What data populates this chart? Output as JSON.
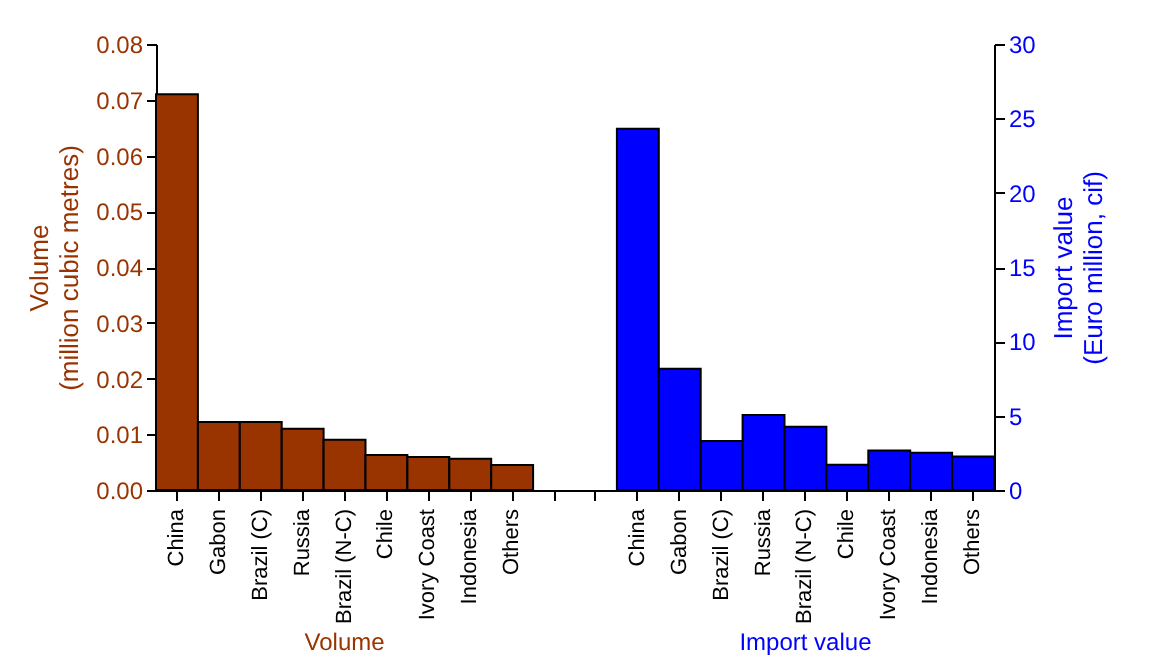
{
  "chart_data": {
    "type": "bar",
    "ylabel": "Volume\n(million cubic metres)",
    "y2label": "Import value\n(Euro million, cif)",
    "categories": [
      "China",
      "Gabon",
      "Brazil (C)",
      "Russia",
      "Brazil (N-C)",
      "Chile",
      "Ivory Coast",
      "Indonesia",
      "Others",
      null,
      null,
      "China",
      "Gabon",
      "Brazil (C)",
      "Russia",
      "Brazil (N-C)",
      "Chile",
      "Ivory Coast",
      "Indonesia",
      "Others"
    ],
    "series": [
      {
        "name": "Volume",
        "color": "#993300",
        "values": [
          0.071,
          0.0122,
          0.0122,
          0.011,
          0.009,
          0.0063,
          0.0059,
          0.0056,
          0.0045,
          null,
          null,
          null,
          null,
          null,
          null,
          null,
          null,
          null,
          null,
          null
        ]
      },
      {
        "name": "Import value",
        "color": "#0000ff",
        "axis": "y2",
        "values": [
          null,
          null,
          null,
          null,
          null,
          null,
          null,
          null,
          null,
          null,
          null,
          24.3,
          8.15,
          3.3,
          5.05,
          4.25,
          1.7,
          2.65,
          2.5,
          2.25
        ]
      }
    ],
    "ylim": [
      0,
      0.08
    ],
    "yticks": [
      {
        "value": 0,
        "label": "0.00"
      },
      {
        "value": 0.01,
        "label": "0.01"
      },
      {
        "value": 0.02,
        "label": "0.02"
      },
      {
        "value": 0.03,
        "label": "0.03"
      },
      {
        "value": 0.04,
        "label": "0.04"
      },
      {
        "value": 0.05,
        "label": "0.05"
      },
      {
        "value": 0.06,
        "label": "0.06"
      },
      {
        "value": 0.07,
        "label": "0.07"
      },
      {
        "value": 0.08,
        "label": "0.08"
      }
    ],
    "y2lim": [
      0,
      30
    ],
    "y2ticks": [
      0,
      5,
      10,
      15,
      20,
      25,
      30
    ],
    "grid": false
  }
}
